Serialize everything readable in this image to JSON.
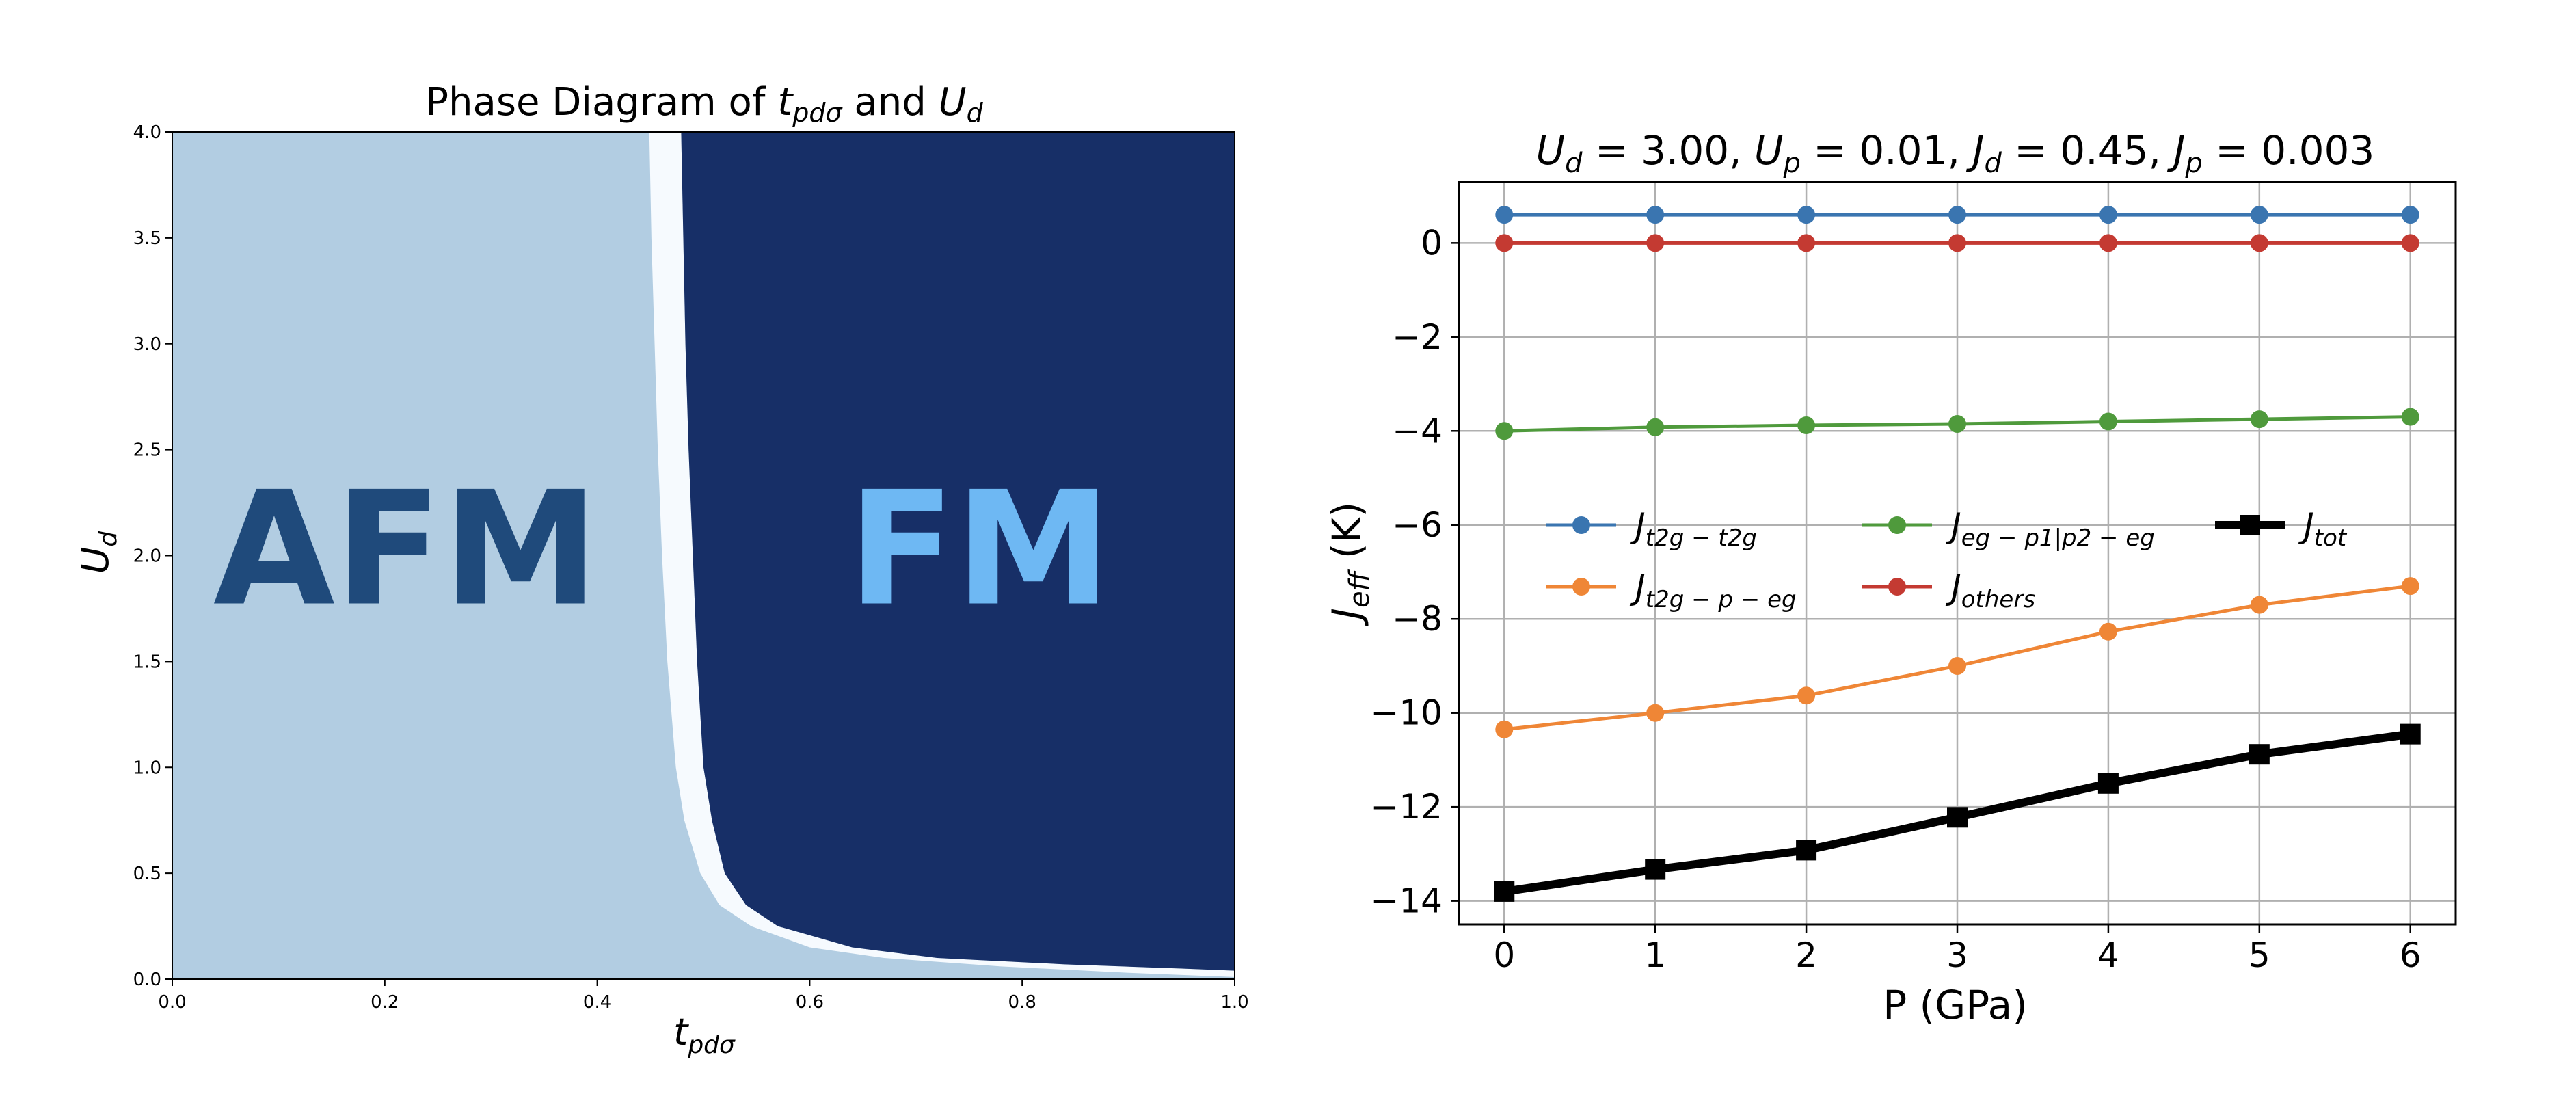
{
  "chart_data": [
    {
      "type": "heatmap",
      "title": "Phase Diagram of t_{pdσ} and U_d",
      "title_parts": {
        "prefix": "Phase Diagram of ",
        "t_main": "t",
        "t_sub": "pdσ",
        "mid": " and ",
        "u_main": "U",
        "u_sub": "d"
      },
      "xlabel_parts": {
        "main": "t",
        "sub": "pdσ"
      },
      "ylabel_parts": {
        "main": "U",
        "sub": "d"
      },
      "xlim": [
        0.0,
        1.0
      ],
      "ylim": [
        0.0,
        4.0
      ],
      "xticks": [
        0.0,
        0.2,
        0.4,
        0.6,
        0.8,
        1.0
      ],
      "xtick_labels": [
        "0.0",
        "0.2",
        "0.4",
        "0.6",
        "0.8",
        "1.0"
      ],
      "yticks": [
        0.0,
        0.5,
        1.0,
        1.5,
        2.0,
        2.5,
        3.0,
        3.5,
        4.0
      ],
      "ytick_labels": [
        "0.0",
        "0.5",
        "1.0",
        "1.5",
        "2.0",
        "2.5",
        "3.0",
        "3.5",
        "4.0"
      ],
      "regions": [
        {
          "name": "AFM",
          "label": "AFM",
          "color": "#b2cde2",
          "label_color": "#1f4a7b"
        },
        {
          "name": "intermediate",
          "label": "",
          "color": "#f6fafe"
        },
        {
          "name": "FM",
          "label": "FM",
          "color": "#172f67",
          "label_color": "#6eb8f3"
        }
      ],
      "label_positions": [
        {
          "label": "AFM",
          "x": 0.22,
          "y": 2.0
        },
        {
          "label": "FM",
          "x": 0.76,
          "y": 2.0
        }
      ],
      "boundary_afm_right": [
        {
          "U": 4.0,
          "t": 0.449
        },
        {
          "U": 3.5,
          "t": 0.451
        },
        {
          "U": 3.0,
          "t": 0.454
        },
        {
          "U": 2.5,
          "t": 0.457
        },
        {
          "U": 2.0,
          "t": 0.461
        },
        {
          "U": 1.5,
          "t": 0.466
        },
        {
          "U": 1.0,
          "t": 0.474
        },
        {
          "U": 0.75,
          "t": 0.482
        },
        {
          "U": 0.5,
          "t": 0.497
        },
        {
          "U": 0.35,
          "t": 0.515
        },
        {
          "U": 0.25,
          "t": 0.545
        },
        {
          "U": 0.15,
          "t": 0.6
        },
        {
          "U": 0.1,
          "t": 0.67
        },
        {
          "U": 0.06,
          "t": 0.78
        },
        {
          "U": 0.03,
          "t": 0.9
        },
        {
          "U": 0.01,
          "t": 1.0
        },
        {
          "U": 0.0,
          "t": 1.0
        }
      ],
      "boundary_fm_left": [
        {
          "U": 4.0,
          "t": 0.479
        },
        {
          "U": 3.5,
          "t": 0.481
        },
        {
          "U": 3.0,
          "t": 0.483
        },
        {
          "U": 2.5,
          "t": 0.486
        },
        {
          "U": 2.0,
          "t": 0.49
        },
        {
          "U": 1.5,
          "t": 0.494
        },
        {
          "U": 1.0,
          "t": 0.5
        },
        {
          "U": 0.75,
          "t": 0.508
        },
        {
          "U": 0.5,
          "t": 0.52
        },
        {
          "U": 0.35,
          "t": 0.54
        },
        {
          "U": 0.25,
          "t": 0.57
        },
        {
          "U": 0.15,
          "t": 0.64
        },
        {
          "U": 0.1,
          "t": 0.72
        },
        {
          "U": 0.07,
          "t": 0.84
        },
        {
          "U": 0.05,
          "t": 0.95
        },
        {
          "U": 0.04,
          "t": 1.0
        }
      ]
    },
    {
      "type": "line",
      "title": "U_d = 3.00,  U_p = 0.01,  J_d = 0.45,  J_p = 0.003",
      "title_parts": [
        {
          "main": "U",
          "sub": "d",
          "eq": " = 3.00, "
        },
        {
          "main": "U",
          "sub": "p",
          "eq": " = 0.01, "
        },
        {
          "main": "J",
          "sub": "d",
          "eq": " = 0.45, "
        },
        {
          "main": "J",
          "sub": "p",
          "eq": " = 0.003"
        }
      ],
      "xlabel": "P (GPa)",
      "ylabel_parts": {
        "main": "J",
        "sub": "eff",
        "unit": " (K)"
      },
      "x": [
        0,
        1,
        2,
        3,
        4,
        5,
        6
      ],
      "xlim": [
        -0.3,
        6.3
      ],
      "ylim": [
        -14.5,
        1.3
      ],
      "xticks": [
        0,
        1,
        2,
        3,
        4,
        5,
        6
      ],
      "xtick_labels": [
        "0",
        "1",
        "2",
        "3",
        "4",
        "5",
        "6"
      ],
      "yticks": [
        0,
        -2,
        -4,
        -6,
        -8,
        -10,
        -12,
        -14
      ],
      "ytick_labels": [
        "0",
        "−2",
        "−4",
        "−6",
        "−8",
        "−10",
        "−12",
        "−14"
      ],
      "grid": true,
      "legend_position": "center",
      "series": [
        {
          "name": "J_{t2g−t2g}",
          "label_main": "J",
          "label_sub": "t2g − t2g",
          "color": "#3a75b0",
          "marker": "circle",
          "values": [
            0.6,
            0.6,
            0.6,
            0.6,
            0.6,
            0.6,
            0.6
          ]
        },
        {
          "name": "J_{t2g−p−eg}",
          "label_main": "J",
          "label_sub": "t2g − p − eg",
          "color": "#ef8636",
          "marker": "circle",
          "values": [
            -10.35,
            -10.0,
            -9.63,
            -9.0,
            -8.27,
            -7.7,
            -7.3
          ]
        },
        {
          "name": "J_{eg−p1|p2−eg}",
          "label_main": "J",
          "label_sub": "eg − p1|p2 − eg",
          "color": "#4f9a3c",
          "marker": "circle",
          "values": [
            -4.0,
            -3.92,
            -3.88,
            -3.85,
            -3.8,
            -3.75,
            -3.7
          ]
        },
        {
          "name": "J_{others}",
          "label_main": "J",
          "label_sub": "others",
          "color": "#c43a32",
          "marker": "circle",
          "values": [
            0.0,
            0.0,
            0.0,
            0.0,
            0.0,
            0.0,
            0.0
          ]
        },
        {
          "name": "J_{tot}",
          "label_main": "J",
          "label_sub": "tot",
          "color": "#000000",
          "marker": "square",
          "thick": true,
          "values": [
            -13.8,
            -13.33,
            -12.92,
            -12.22,
            -11.5,
            -10.88,
            -10.45
          ]
        }
      ]
    }
  ]
}
